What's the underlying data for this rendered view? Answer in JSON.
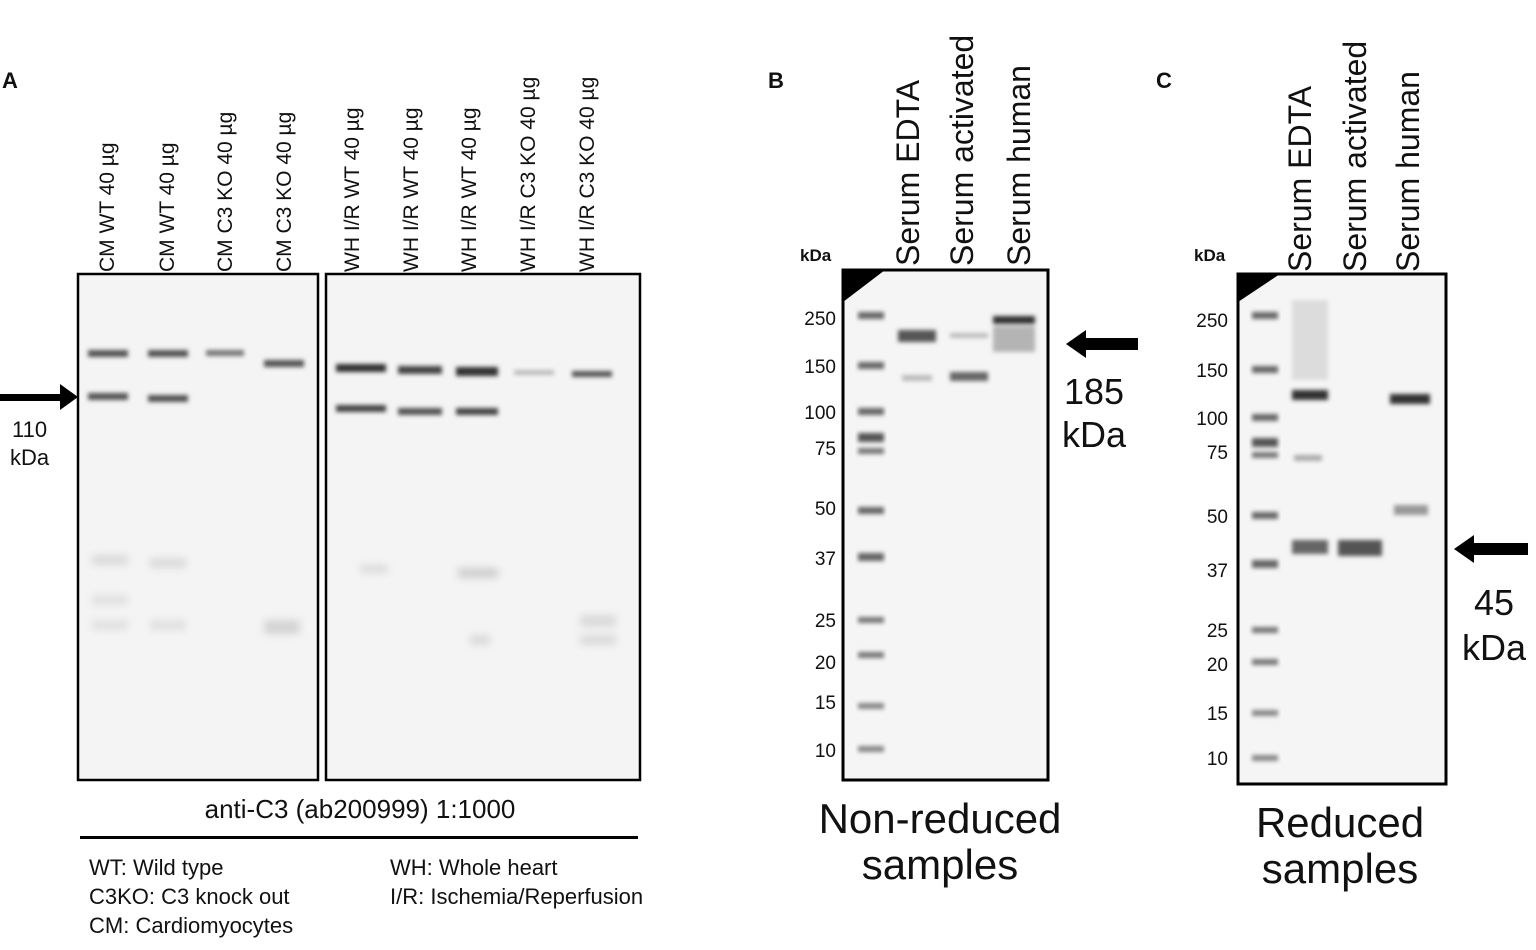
{
  "panelA": {
    "letter": "A",
    "lanes": [
      "CM WT 40 µg",
      "CM WT 40 µg",
      "CM C3 KO 40 µg",
      "CM C3 KO 40 µg",
      "WH I/R WT 40 µg",
      "WH I/R WT 40 µg",
      "WH I/R WT 40 µg",
      "WH I/R C3 KO 40 µg",
      "WH I/R C3 KO 40 µg"
    ],
    "marker_value": "110",
    "marker_unit": "kDa",
    "antibody": "anti-C3 (ab200999) 1:1000",
    "legend": {
      "col1": [
        "WT: Wild type",
        "C3KO: C3 knock out",
        "CM: Cardiomyocytes"
      ],
      "col2": [
        "WH: Whole heart",
        "I/R: Ischemia/Reperfusion"
      ]
    }
  },
  "panelB": {
    "letter": "B",
    "kda_header": "kDa",
    "lanes": [
      "Serum EDTA",
      "Serum activated",
      "Serum human"
    ],
    "ladder": [
      "250",
      "150",
      "100",
      "75",
      "50",
      "37",
      "25",
      "20",
      "15",
      "10"
    ],
    "marker_value": "185",
    "marker_unit": "kDa",
    "caption_line1": "Non-reduced",
    "caption_line2": "samples"
  },
  "panelC": {
    "letter": "C",
    "kda_header": "kDa",
    "lanes": [
      "Serum EDTA",
      "Serum activated",
      "Serum human"
    ],
    "ladder": [
      "250",
      "150",
      "100",
      "75",
      "50",
      "37",
      "25",
      "20",
      "15",
      "10"
    ],
    "marker_value": "45",
    "marker_unit": "kDa",
    "caption_line1": "Reduced",
    "caption_line2": "samples"
  }
}
